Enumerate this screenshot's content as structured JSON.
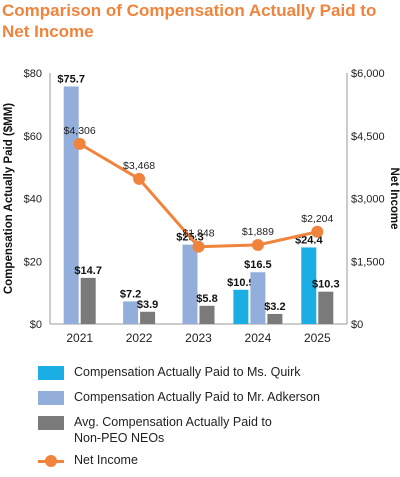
{
  "title": "Comparison of Compensation Actually Paid to Net Income",
  "chart_data": {
    "type": "bar",
    "categories": [
      "2021",
      "2022",
      "2023",
      "2024",
      "2025"
    ],
    "series": [
      {
        "name": "Compensation Actually Paid to Ms. Quirk",
        "kind": "bar",
        "axis": "left",
        "color": "#1aaee5",
        "values": [
          null,
          null,
          null,
          10.9,
          24.4
        ],
        "labels": [
          "",
          "",
          "",
          "$10.9",
          "$24.4"
        ]
      },
      {
        "name": "Compensation Actually Paid to Mr. Adkerson",
        "kind": "bar",
        "axis": "left",
        "color": "#94aedc",
        "values": [
          75.7,
          7.2,
          25.3,
          16.5,
          null
        ],
        "labels": [
          "$75.7",
          "$7.2",
          "$25.3",
          "$16.5",
          ""
        ]
      },
      {
        "name": "Avg. Compensation Actually Paid to Non-PEO NEOs",
        "kind": "bar",
        "axis": "left",
        "color": "#7a7a7a",
        "values": [
          14.7,
          3.9,
          5.8,
          3.2,
          10.3
        ],
        "labels": [
          "$14.7",
          "$3.9",
          "$5.8",
          "$3.2",
          "$10.3"
        ]
      },
      {
        "name": "Net Income",
        "kind": "line",
        "axis": "right",
        "color": "#f0843c",
        "values": [
          4306,
          3468,
          1848,
          1889,
          2204
        ],
        "labels": [
          "$4,306",
          "$3,468",
          "$1,848",
          "$1,889",
          "$2,204"
        ]
      }
    ],
    "ylabel": "Compensation Actually Paid ($MM)",
    "y2label": "Net Income",
    "ylim": [
      0,
      80
    ],
    "y2lim": [
      0,
      6000
    ],
    "yticks": [
      "$0",
      "$20",
      "$40",
      "$60",
      "$80"
    ],
    "y2ticks": [
      "$0",
      "$1,500",
      "$3,000",
      "$4,500",
      "$6,000"
    ],
    "grid": false,
    "legend": "bottom"
  },
  "legend": [
    {
      "label": "Compensation Actually Paid to Ms. Quirk",
      "color": "#1aaee5",
      "kind": "bar"
    },
    {
      "label": "Compensation Actually Paid to Mr. Adkerson",
      "color": "#94aedc",
      "kind": "bar"
    },
    {
      "label": "Avg. Compensation Actually Paid to Non-PEO NEOs",
      "line1": "Avg. Compensation Actually Paid to",
      "line2": "Non-PEO NEOs",
      "color": "#7a7a7a",
      "kind": "bar"
    },
    {
      "label": "Net Income",
      "color": "#f0843c",
      "kind": "line"
    }
  ]
}
